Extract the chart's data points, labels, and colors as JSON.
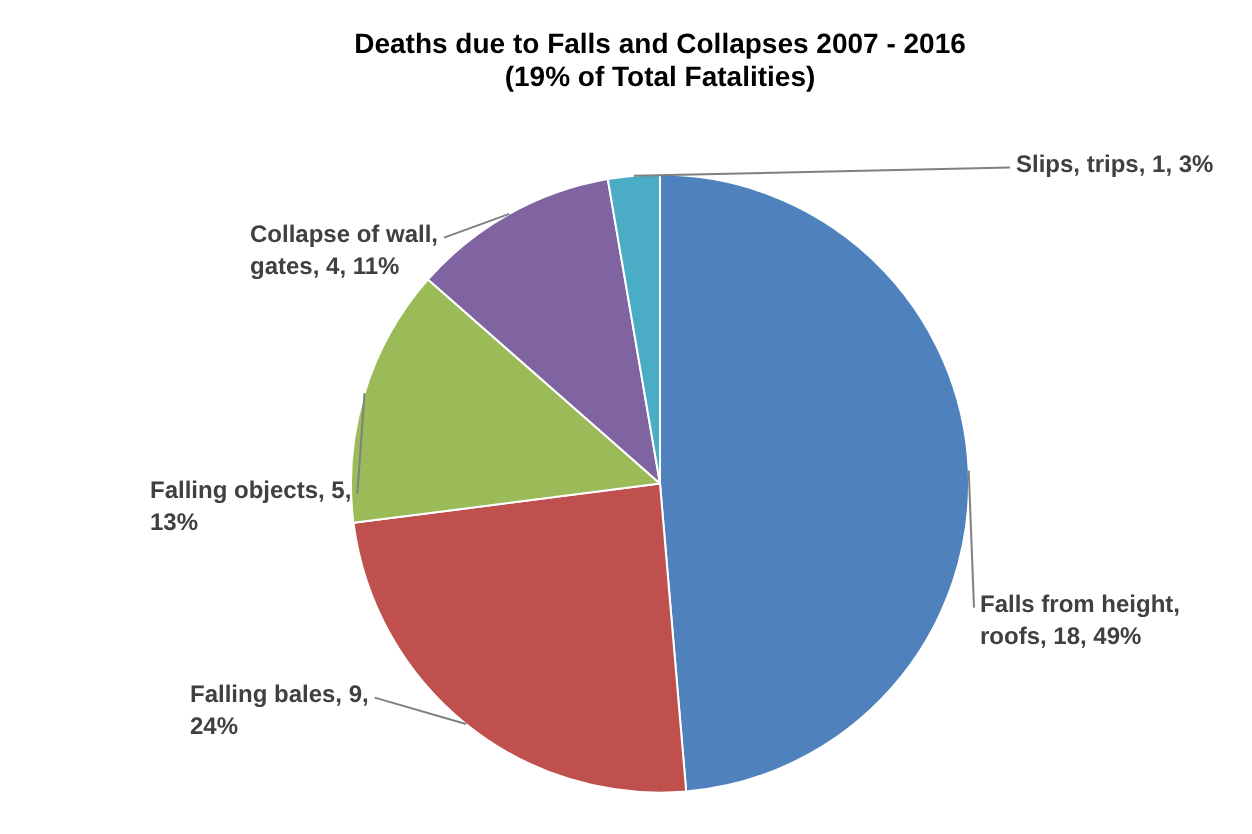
{
  "chart_data": {
    "type": "pie",
    "title": "Deaths due to Falls and Collapses 2007 - 2016",
    "subtitle": "(19% of Total Fatalities)",
    "categories": [
      "Falls from height, roofs",
      "Falling bales",
      "Falling objects",
      "Collapse of wall, gates",
      "Slips, trips"
    ],
    "values": [
      18,
      9,
      5,
      4,
      1
    ],
    "colors": [
      "#4f81bd",
      "#c0504d",
      "#9bbb59",
      "#8064a2",
      "#4bacc6"
    ],
    "value_labels": [
      "18, 49%",
      "9, 24%",
      "5, 13%",
      "4, 11%",
      "1, 3%"
    ]
  }
}
